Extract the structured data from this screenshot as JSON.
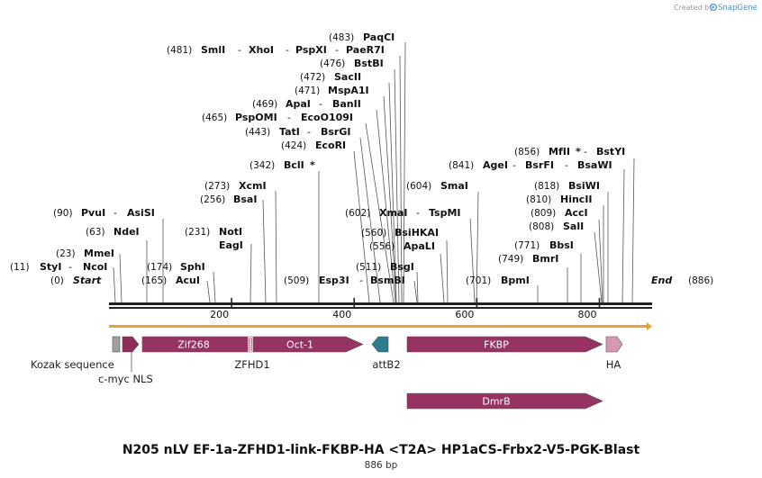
{
  "credit": {
    "prefix": "Created by",
    "brand": "SnapGene"
  },
  "map": {
    "title": "N205 nLV EF-1a-ZFHD1-link-FKBP-HA <T2A> HP1aCS-Frbx2-V5-PGK-Blast",
    "length_label": "886 bp",
    "start": {
      "pos": "(0)",
      "name": "Start"
    },
    "end": {
      "pos": "(886)",
      "name": "End"
    },
    "ruler_ticks": [
      {
        "value": 200,
        "label": "200"
      },
      {
        "value": 400,
        "label": "400"
      },
      {
        "value": 600,
        "label": "600"
      },
      {
        "value": 800,
        "label": "800"
      }
    ]
  },
  "sites": [
    {
      "pos": "(11)",
      "name": "StyI",
      "name2": "NcoI",
      "bp": 11
    },
    {
      "pos": "(23)",
      "name": "MmeI",
      "bp": 23
    },
    {
      "pos": "(63)",
      "name": "NdeI",
      "bp": 63
    },
    {
      "pos": "(90)",
      "name": "PvuI",
      "name2": "AsiSI",
      "bp": 90
    },
    {
      "pos": "(165)",
      "name": "AcuI",
      "bp": 165
    },
    {
      "pos": "(174)",
      "name": "SphI",
      "bp": 174
    },
    {
      "pos": "(231)",
      "name": "NotI",
      "bp": 231
    },
    {
      "pos": "",
      "name": "EagI",
      "bp": 231
    },
    {
      "pos": "(256)",
      "name": "BsaI",
      "bp": 256
    },
    {
      "pos": "(273)",
      "name": "XcmI",
      "bp": 273
    },
    {
      "pos": "(342)",
      "name": "BclI",
      "star": "*",
      "bp": 342
    },
    {
      "pos": "(424)",
      "name": "EcoRI",
      "bp": 424
    },
    {
      "pos": "(443)",
      "name": "TatI",
      "name2": "BsrGI",
      "bp": 443
    },
    {
      "pos": "(465)",
      "name": "PspOMI",
      "name2": "EcoO109I",
      "bp": 465
    },
    {
      "pos": "(469)",
      "name": "ApaI",
      "name2": "BanII",
      "bp": 469
    },
    {
      "pos": "(471)",
      "name": "MspA1I",
      "bp": 471
    },
    {
      "pos": "(472)",
      "name": "SacII",
      "bp": 472
    },
    {
      "pos": "(476)",
      "name": "BstBI",
      "bp": 476
    },
    {
      "pos": "(481)",
      "name": "SmlI",
      "name2": "XhoI",
      "name3": "PspXI",
      "name4": "PaeR7I",
      "bp": 481
    },
    {
      "pos": "(483)",
      "name": "PaqCI",
      "bp": 483
    },
    {
      "pos": "(509)",
      "name": "Esp3I",
      "name2": "BsmBI",
      "bp": 509
    },
    {
      "pos": "(511)",
      "name": "BsgI",
      "bp": 511
    },
    {
      "pos": "(556)",
      "name": "ApaLI",
      "bp": 556
    },
    {
      "pos": "(560)",
      "name": "BsiHKAI",
      "bp": 560
    },
    {
      "pos": "(602)",
      "name": "XmaI",
      "name2": "TspMI",
      "bp": 602
    },
    {
      "pos": "(604)",
      "name": "SmaI",
      "bp": 604
    },
    {
      "pos": "(701)",
      "name": "BpmI",
      "bp": 701
    },
    {
      "pos": "(749)",
      "name": "BmrI",
      "bp": 749
    },
    {
      "pos": "(771)",
      "name": "BbsI",
      "bp": 771
    },
    {
      "pos": "(808)",
      "name": "SalI",
      "bp": 808
    },
    {
      "pos": "(809)",
      "name": "AccI",
      "bp": 809
    },
    {
      "pos": "(810)",
      "name": "HincII",
      "bp": 810
    },
    {
      "pos": "(818)",
      "name": "BsiWI",
      "bp": 818
    },
    {
      "pos": "(841)",
      "name": "AgeI",
      "name2": "BsrFI",
      "name3": "BsaWI",
      "bp": 841
    },
    {
      "pos": "(856)",
      "name": "MfII",
      "star": "*",
      "name2": "BstYI",
      "bp": 856
    }
  ],
  "features": [
    {
      "name": "Kozak sequence",
      "color": "#a0a0a0"
    },
    {
      "name": "c-myc NLS",
      "color": "#8c2b5c"
    },
    {
      "name": "ZFHD1",
      "sub1": "Zif268",
      "sub2": "Oct-1",
      "color": "#963363"
    },
    {
      "name": "attB2",
      "color": "#2e7d8f"
    },
    {
      "name": "FKBP",
      "color": "#963363"
    },
    {
      "name": "HA",
      "color": "#d49ab2"
    },
    {
      "name": "DmrB",
      "color": "#963363"
    }
  ],
  "colors": {
    "orf": "#e8a13b",
    "backbone": "#222222",
    "credit": "#9a9a9a",
    "brand": "#4a90c8"
  }
}
